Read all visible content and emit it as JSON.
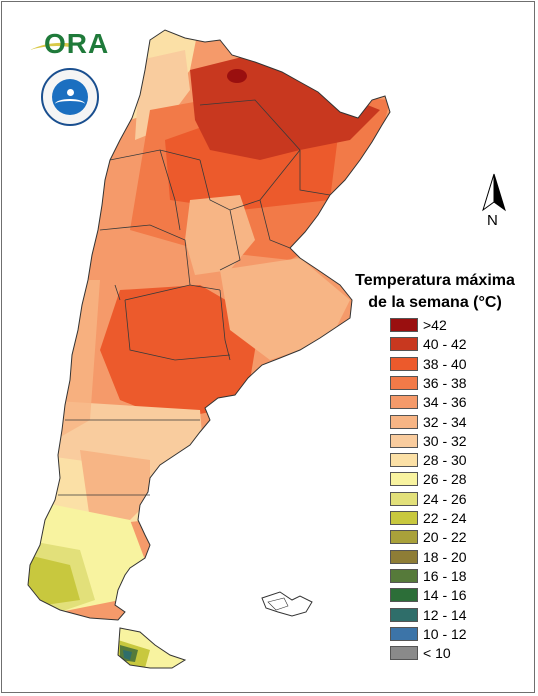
{
  "logos": {
    "ora": {
      "text": "ORA",
      "icon": "ora-logo",
      "color": "#1f7a3a"
    },
    "smn": {
      "icon": "smn-seal-logo",
      "color": "#1b6fc0"
    }
  },
  "north_arrow": {
    "label": "N",
    "icon": "north-arrow-icon"
  },
  "legend": {
    "title_line1": "Temperatura máxima",
    "title_line2": "de la semana (°C)",
    "items": [
      {
        "label": ">42",
        "color": "#9a0f0f"
      },
      {
        "label": "40 - 42",
        "color": "#c8381f"
      },
      {
        "label": "38 - 40",
        "color": "#ec5a2c"
      },
      {
        "label": "36 - 38",
        "color": "#f27a48"
      },
      {
        "label": "34 - 36",
        "color": "#f59a6a"
      },
      {
        "label": "32 - 34",
        "color": "#f7b585"
      },
      {
        "label": "30 - 32",
        "color": "#f9cc9e"
      },
      {
        "label": "28 - 30",
        "color": "#fbe0a6"
      },
      {
        "label": "26 - 28",
        "color": "#f8f3a0"
      },
      {
        "label": "24 - 26",
        "color": "#e2e07a"
      },
      {
        "label": "22 - 24",
        "color": "#c8c83e"
      },
      {
        "label": "20 - 22",
        "color": "#a9a13a"
      },
      {
        "label": "18 - 20",
        "color": "#8e7d36"
      },
      {
        "label": "16 - 18",
        "color": "#567a3a"
      },
      {
        "label": "14 - 16",
        "color": "#2c6e38"
      },
      {
        "label": "12 - 14",
        "color": "#2f6e6a"
      },
      {
        "label": "10 - 12",
        "color": "#3c74a8"
      },
      {
        "label": "< 10",
        "color": "#8a8a8a"
      }
    ]
  }
}
